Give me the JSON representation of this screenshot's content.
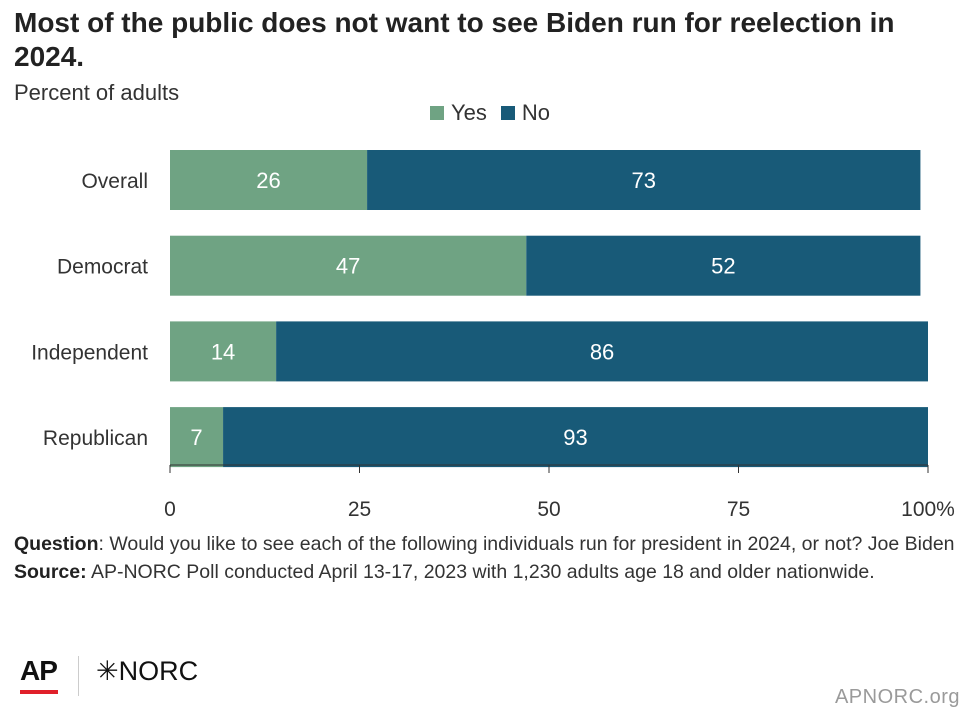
{
  "chart_data": {
    "type": "bar",
    "orientation": "horizontal",
    "stacked": true,
    "title": "Most of the public does not want to see Biden run for reelection in 2024.",
    "subtitle": "Percent of adults",
    "categories": [
      "Overall",
      "Democrat",
      "Independent",
      "Republican"
    ],
    "series": [
      {
        "name": "Yes",
        "values": [
          26,
          47,
          14,
          7
        ],
        "color": "#6fa383"
      },
      {
        "name": "No",
        "values": [
          73,
          52,
          86,
          93
        ],
        "color": "#185a78"
      }
    ],
    "xlim": [
      0,
      100
    ],
    "x_ticks": [
      "0",
      "25",
      "50",
      "75",
      "100%"
    ],
    "x_tick_values": [
      0,
      25,
      50,
      75,
      100
    ],
    "legend_position": "top",
    "grid": false
  },
  "footer": {
    "question_label": "Question",
    "question_text": ": Would you like to see each of the following individuals run for president in 2024, or not? Joe Biden",
    "source_label": "Source:",
    "source_text": " AP-NORC Poll conducted April 13-17, 2023 with 1,230 adults age 18 and older nationwide."
  },
  "logos": {
    "ap": "AP",
    "norc": "NORC",
    "norc_mark": "✳"
  },
  "site": "APNORC.org"
}
